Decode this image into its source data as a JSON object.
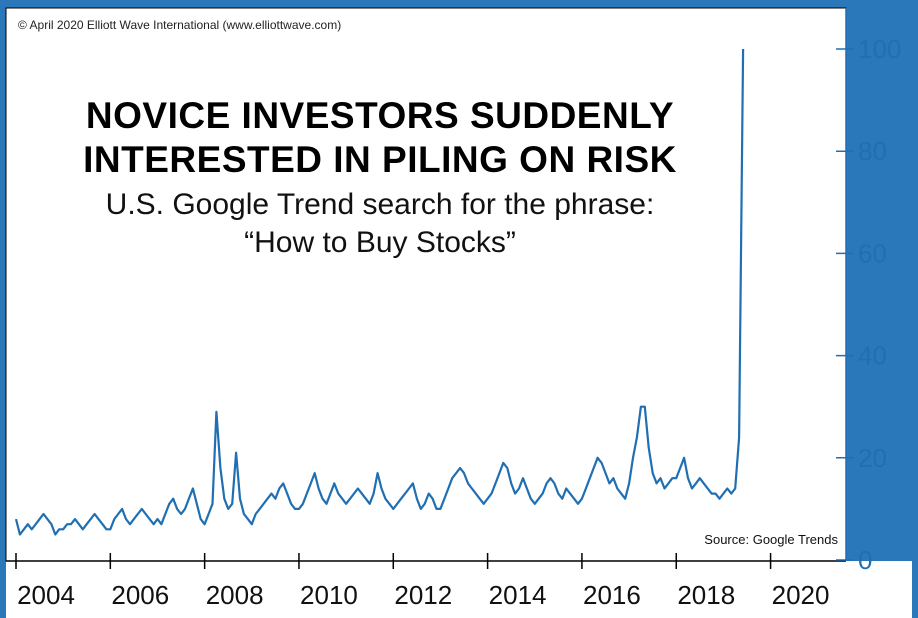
{
  "copyright": "© April 2020 Elliott Wave International (www.elliottwave.com)",
  "source": "Source: Google Trends",
  "colors": {
    "line": "#1f6fb2",
    "frame": "#2a78ba",
    "background": "#ffffff",
    "text": "#000000"
  },
  "chart_data": {
    "type": "line",
    "title_lines": [
      "NOVICE INVESTORS SUDDENLY",
      "INTERESTED IN PILING ON RISK"
    ],
    "subtitle_lines": [
      "U.S. Google Trend search for the phrase:",
      "“How to Buy Stocks”"
    ],
    "xlabel": "",
    "ylabel": "",
    "ylim": [
      0,
      100
    ],
    "xlim": [
      2003.0,
      2021.0
    ],
    "y_axis_position": "right",
    "grid": false,
    "yticks": [
      "0",
      "20",
      "40",
      "60",
      "80",
      "100"
    ],
    "xticks": [
      "2004",
      "2006",
      "2008",
      "2010",
      "2012",
      "2014",
      "2016",
      "2018",
      "2020"
    ],
    "series": [
      {
        "name": "",
        "x_start": "2004-01",
        "frequency": "monthly",
        "values": [
          8,
          5,
          6,
          7,
          6,
          7,
          8,
          9,
          8,
          7,
          5,
          6,
          6,
          7,
          7,
          8,
          7,
          6,
          7,
          8,
          9,
          8,
          7,
          6,
          6,
          8,
          9,
          10,
          8,
          7,
          8,
          9,
          10,
          9,
          8,
          7,
          8,
          7,
          9,
          11,
          12,
          10,
          9,
          10,
          12,
          14,
          11,
          8,
          7,
          9,
          11,
          29,
          18,
          12,
          10,
          11,
          21,
          12,
          9,
          8,
          7,
          9,
          10,
          11,
          12,
          13,
          12,
          14,
          15,
          13,
          11,
          10,
          10,
          11,
          13,
          15,
          17,
          14,
          12,
          11,
          13,
          15,
          13,
          12,
          11,
          12,
          13,
          14,
          13,
          12,
          11,
          13,
          17,
          14,
          12,
          11,
          10,
          11,
          12,
          13,
          14,
          15,
          12,
          10,
          11,
          13,
          12,
          10,
          10,
          12,
          14,
          16,
          17,
          18,
          17,
          15,
          14,
          13,
          12,
          11,
          12,
          13,
          15,
          17,
          19,
          18,
          15,
          13,
          14,
          16,
          14,
          12,
          11,
          12,
          13,
          15,
          16,
          15,
          13,
          12,
          14,
          13,
          12,
          11,
          12,
          14,
          16,
          18,
          20,
          19,
          17,
          15,
          16,
          14,
          13,
          12,
          15,
          20,
          24,
          30,
          30,
          22,
          17,
          15,
          16,
          14,
          15,
          16,
          16,
          18,
          20,
          16,
          14,
          15,
          16,
          15,
          14,
          13,
          13,
          12,
          13,
          14,
          13,
          14,
          24,
          100
        ]
      }
    ]
  }
}
